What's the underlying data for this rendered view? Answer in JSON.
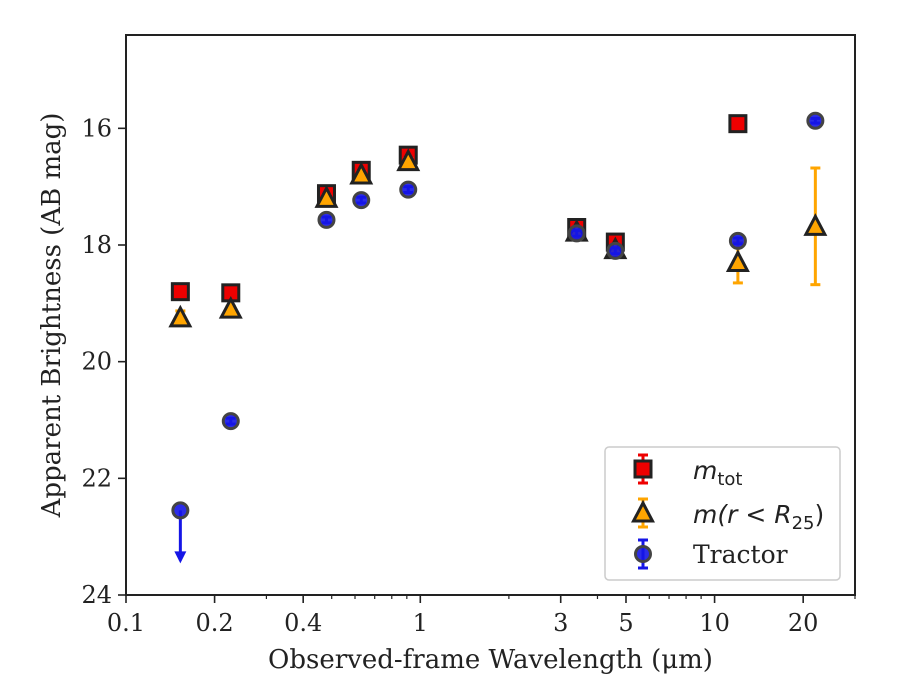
{
  "chart_data": {
    "type": "scatter",
    "xlabel": "Observed-frame Wavelength (μm)",
    "ylabel": "Apparent Brightness (AB mag)",
    "x_scale": "log",
    "y_inverted": true,
    "xlim": [
      0.1,
      30
    ],
    "ylim": [
      24,
      14.4
    ],
    "xticks": [
      {
        "value": 0.1,
        "label": "0.1"
      },
      {
        "value": 0.2,
        "label": "0.2"
      },
      {
        "value": 0.4,
        "label": "0.4"
      },
      {
        "value": 1,
        "label": "1"
      },
      {
        "value": 3,
        "label": "3"
      },
      {
        "value": 5,
        "label": "5"
      },
      {
        "value": 10,
        "label": "10"
      },
      {
        "value": 20,
        "label": "20"
      }
    ],
    "yticks": [
      {
        "value": 16,
        "label": "16"
      },
      {
        "value": 18,
        "label": "18"
      },
      {
        "value": 20,
        "label": "20"
      },
      {
        "value": 22,
        "label": "22"
      },
      {
        "value": 24,
        "label": "24"
      }
    ],
    "legend_position": "lower-right",
    "series": [
      {
        "name": "m_tot",
        "marker": "square",
        "face_color": "#ee0000",
        "edge_color": "#222222",
        "err_color": "#ee0000",
        "points": [
          {
            "x": 0.153,
            "y": 18.8,
            "err": 0.03
          },
          {
            "x": 0.227,
            "y": 18.82,
            "err": 0.03
          },
          {
            "x": 0.48,
            "y": 17.12,
            "err": 0.05
          },
          {
            "x": 0.63,
            "y": 16.72,
            "err": 0.05
          },
          {
            "x": 0.91,
            "y": 16.46,
            "err": 0.05
          },
          {
            "x": 3.4,
            "y": 17.7,
            "err": 0.05
          },
          {
            "x": 4.6,
            "y": 17.95,
            "err": 0.05
          },
          {
            "x": 12.0,
            "y": 15.92,
            "err": 0.02
          }
        ]
      },
      {
        "name": "m(r < R25)",
        "marker": "triangle",
        "face_color": "#ffa500",
        "edge_color": "#222222",
        "err_color": "#ffa500",
        "points": [
          {
            "x": 0.153,
            "y": 19.25,
            "err": 0.12
          },
          {
            "x": 0.227,
            "y": 19.1,
            "err": 0.05
          },
          {
            "x": 0.48,
            "y": 17.2,
            "err": 0.05
          },
          {
            "x": 0.63,
            "y": 16.8,
            "err": 0.05
          },
          {
            "x": 0.91,
            "y": 16.57,
            "err": 0.05
          },
          {
            "x": 3.4,
            "y": 17.78,
            "err": 0.05
          },
          {
            "x": 4.6,
            "y": 18.08,
            "err": 0.05
          },
          {
            "x": 12.0,
            "y": 18.3,
            "err": 0.35
          },
          {
            "x": 22.0,
            "y": 17.68,
            "err": 1.0
          }
        ]
      },
      {
        "name": "Tractor",
        "marker": "circle",
        "face_color": "#1515e6",
        "edge_color": "#444444",
        "err_color": "#1515e6",
        "points": [
          {
            "x": 0.153,
            "y": 22.55,
            "err": 0,
            "upper_limit": true
          },
          {
            "x": 0.227,
            "y": 21.02,
            "err": 0.05
          },
          {
            "x": 0.48,
            "y": 17.57,
            "err": 0.05
          },
          {
            "x": 0.63,
            "y": 17.23,
            "err": 0.05
          },
          {
            "x": 0.91,
            "y": 17.05,
            "err": 0.05
          },
          {
            "x": 3.4,
            "y": 17.8,
            "err": 0.05
          },
          {
            "x": 4.6,
            "y": 18.1,
            "err": 0.05
          },
          {
            "x": 12.0,
            "y": 17.93,
            "err": 0.05
          },
          {
            "x": 22.0,
            "y": 15.87,
            "err": 0.04
          }
        ]
      }
    ]
  },
  "legend": {
    "m_tot_base": "m",
    "m_tot_sub": "tot",
    "m_r_prefix": "m(r < R",
    "m_r_sub": "25",
    "m_r_suffix": ")",
    "tractor": "Tractor"
  }
}
